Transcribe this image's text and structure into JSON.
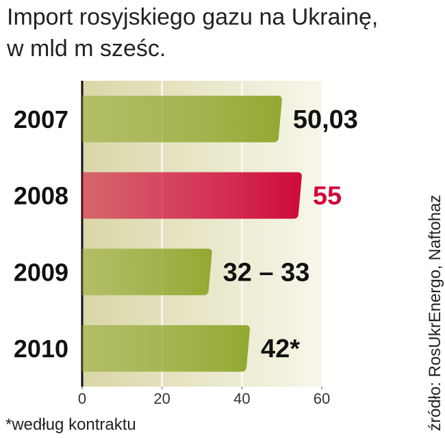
{
  "chart_data": {
    "type": "hbar",
    "title": "Import rosyjskiego gazu na Ukrainę,",
    "subtitle": "w mld m sześc.",
    "categories": [
      "2007",
      "2008",
      "2009",
      "2010"
    ],
    "values": [
      50.03,
      55,
      32.5,
      42
    ],
    "value_labels": [
      "50,03",
      "55",
      "32 – 33",
      "42*"
    ],
    "colors": [
      "#93a832",
      "#cf0a3a",
      "#93a832",
      "#93a832"
    ],
    "xlim": [
      0,
      60
    ],
    "xticks": [
      0,
      20,
      40,
      60
    ],
    "grid": true,
    "footnote": "*według kontraktu",
    "source": "źródło: RosUkrEnergo, Naftohaz"
  }
}
